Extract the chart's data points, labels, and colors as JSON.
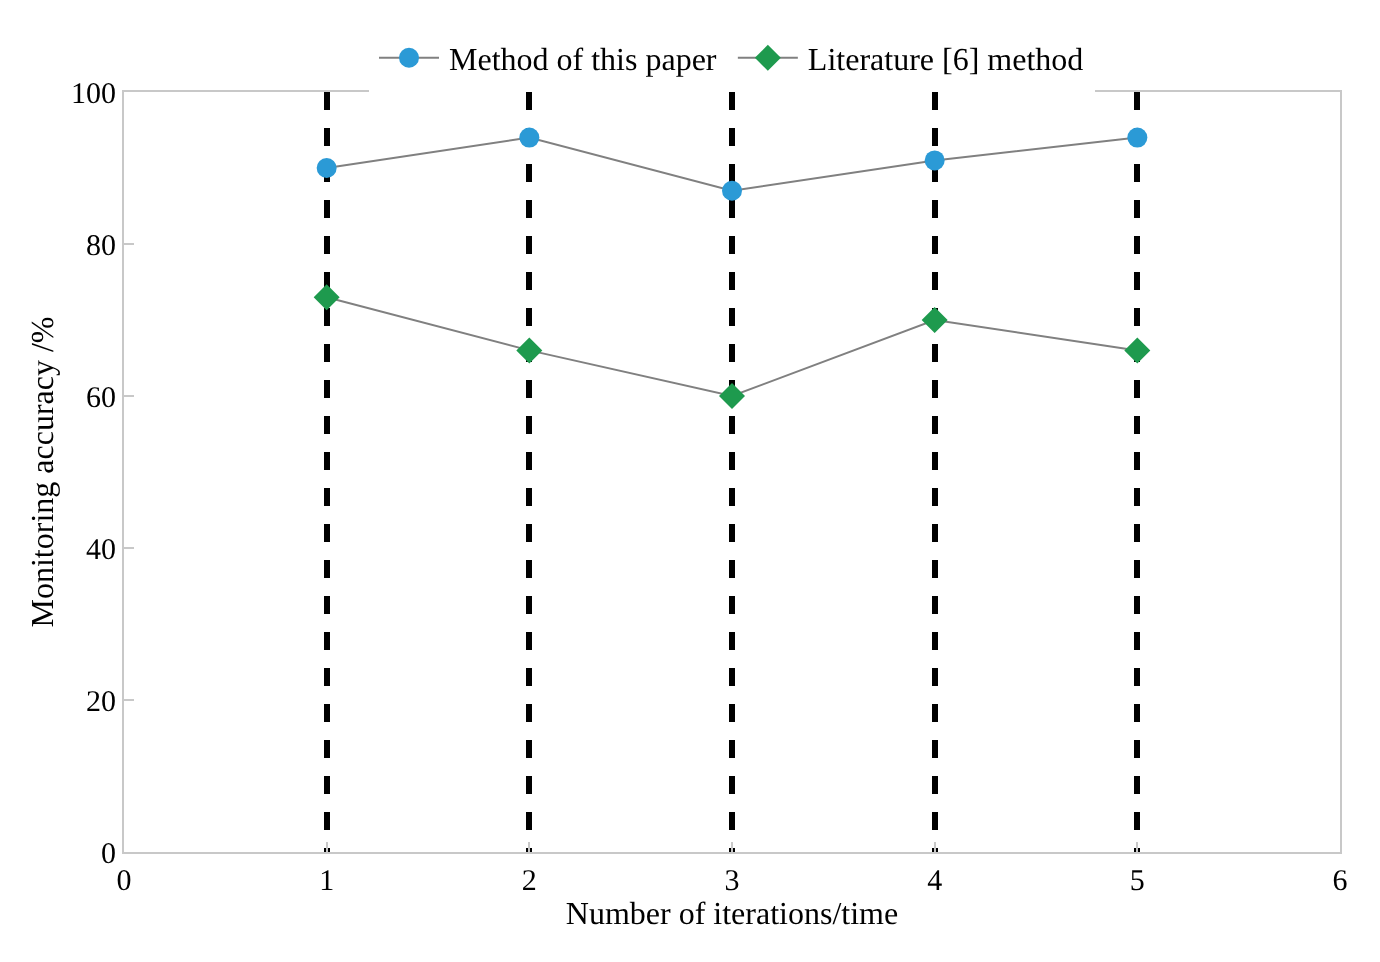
{
  "chart_data": {
    "type": "line",
    "xlabel": "Number of iterations/time",
    "ylabel": "Monitoring accuracy /%",
    "x": [
      1,
      2,
      3,
      4,
      5
    ],
    "series": [
      {
        "name": "Method of this paper",
        "color": "#808080",
        "colors": [
          "#2b9ad6",
          "#2b9ad6",
          "#2b9ad6",
          "#2b9ad6",
          "#2b9ad6"
        ],
        "marker": "circle",
        "values": [
          90,
          94,
          87,
          91,
          94
        ]
      },
      {
        "name": "Literature [6] method",
        "color": "#808080",
        "colors": [
          "#1e9a4e",
          "#1e9a4e",
          "#1e9a4e",
          "#1e9a4e",
          "#1e9a4e"
        ],
        "marker": "diamond",
        "values": [
          73,
          66,
          60,
          70,
          66
        ]
      }
    ],
    "xlim": [
      0,
      6
    ],
    "xticks": [
      0,
      1,
      2,
      3,
      4,
      5,
      6
    ],
    "ylim": [
      0,
      100
    ],
    "yticks": [
      0,
      20,
      40,
      60,
      80,
      100
    ],
    "grid": "x",
    "legend": "top"
  }
}
